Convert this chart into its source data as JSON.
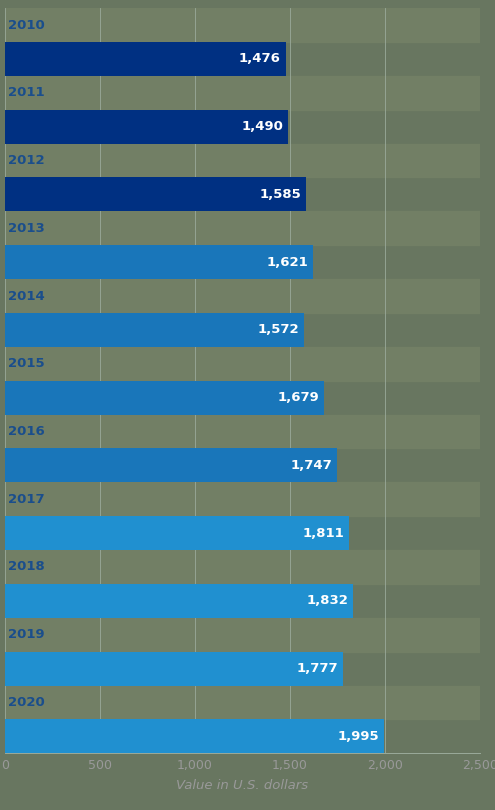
{
  "years": [
    "2010",
    "2011",
    "2012",
    "2013",
    "2014",
    "2015",
    "2016",
    "2017",
    "2018",
    "2019",
    "2020"
  ],
  "values": [
    1476,
    1490,
    1585,
    1621,
    1572,
    1679,
    1747,
    1811,
    1832,
    1777,
    1995
  ],
  "bar_colors": [
    "#003082",
    "#003082",
    "#003082",
    "#1976ba",
    "#1976ba",
    "#1976ba",
    "#1976ba",
    "#2090d0",
    "#2090d0",
    "#2090d0",
    "#2090d0"
  ],
  "bg_color": "#687660",
  "label_row_color": "#727f65",
  "xlabel": "Value in U.S. dollars",
  "xlim": [
    0,
    2500
  ],
  "xticks": [
    0,
    500,
    1000,
    1500,
    2000,
    2500
  ],
  "xtick_labels": [
    "0",
    "500",
    "1,000",
    "1,500",
    "2,000",
    "2,500"
  ],
  "year_label_color": "#1a4e8c",
  "value_label_color": "#ffffff",
  "gridcolor": "#9aaa9a",
  "xlabel_color": "#999999",
  "tick_color": "#999999"
}
